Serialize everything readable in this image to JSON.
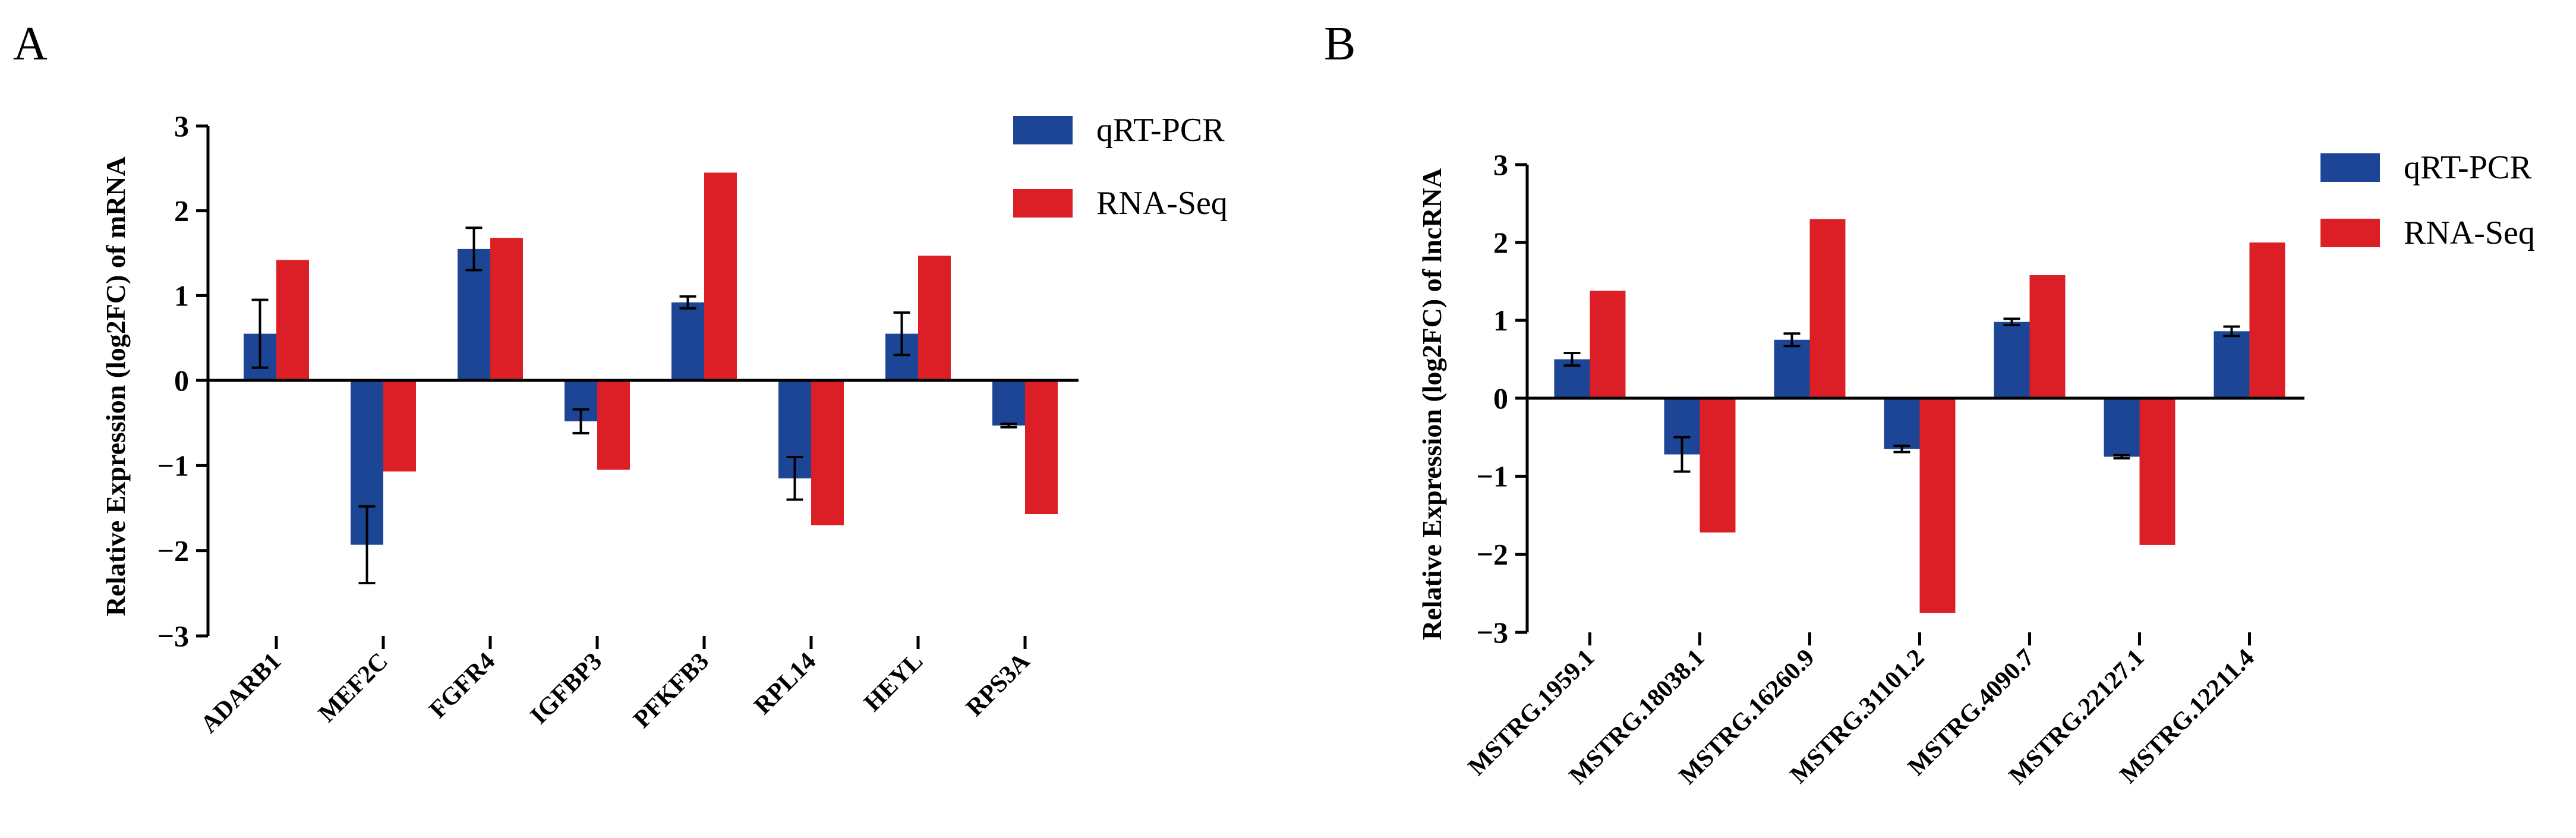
{
  "colors": {
    "qrtpcr": "#1c4595",
    "rnaseq": "#dc1f26",
    "axis": "#000000"
  },
  "chart_data": [
    {
      "type": "bar",
      "panel": "A",
      "title": "",
      "ylabel": "Relative Expression  (log2FC) of mRNA",
      "xlabel": "",
      "ylim": [
        -3,
        3
      ],
      "yticks": [
        3,
        2,
        1,
        0,
        -1,
        -2,
        -3
      ],
      "ytick_labels": [
        "3",
        "2",
        "1",
        "0",
        "−1",
        "−2",
        "−3"
      ],
      "categories": [
        "ADARB1",
        "MEF2C",
        "FGFR4",
        "IGFBP3",
        "PFKFB3",
        "RPL14",
        "HEYL",
        "RPS3A"
      ],
      "series": [
        {
          "name": "qRT-PCR",
          "values": [
            0.55,
            -1.93,
            1.55,
            -0.48,
            0.92,
            -1.15,
            0.55,
            -0.53
          ],
          "errors": [
            0.4,
            0.45,
            0.25,
            0.14,
            0.07,
            0.25,
            0.25,
            0.02
          ]
        },
        {
          "name": "RNA-Seq",
          "values": [
            1.42,
            -1.07,
            1.68,
            -1.05,
            2.45,
            -1.7,
            1.47,
            -1.57
          ]
        }
      ],
      "legend": [
        "qRT-PCR",
        "RNA-Seq"
      ],
      "legend_position": "top-right",
      "grid": false
    },
    {
      "type": "bar",
      "panel": "B",
      "title": "",
      "ylabel": "Relative Expression  (log2FC) of lncRNA",
      "xlabel": "",
      "ylim": [
        -3,
        3
      ],
      "yticks": [
        3,
        2,
        1,
        0,
        -1,
        -2,
        -3
      ],
      "ytick_labels": [
        "3",
        "2",
        "1",
        "0",
        "−1",
        "−2",
        "−3"
      ],
      "categories": [
        "MSTRG.1959.1",
        "MSTRG.18038.1",
        "MSTRG.16260.9",
        "MSTRG.31101.2",
        "MSTRG.4090.7",
        "MSTRG.22127.1",
        "MSTRG.12211.4"
      ],
      "series": [
        {
          "name": "qRT-PCR",
          "values": [
            0.5,
            -0.72,
            0.75,
            -0.65,
            0.98,
            -0.75,
            0.86
          ],
          "errors": [
            0.08,
            0.22,
            0.08,
            0.04,
            0.04,
            0.02,
            0.06
          ]
        },
        {
          "name": "RNA-Seq",
          "values": [
            1.38,
            -1.72,
            2.3,
            -2.75,
            1.58,
            -1.88,
            2.0
          ]
        }
      ],
      "legend": [
        "qRT-PCR",
        "RNA-Seq"
      ],
      "legend_position": "top-right",
      "grid": false
    }
  ]
}
